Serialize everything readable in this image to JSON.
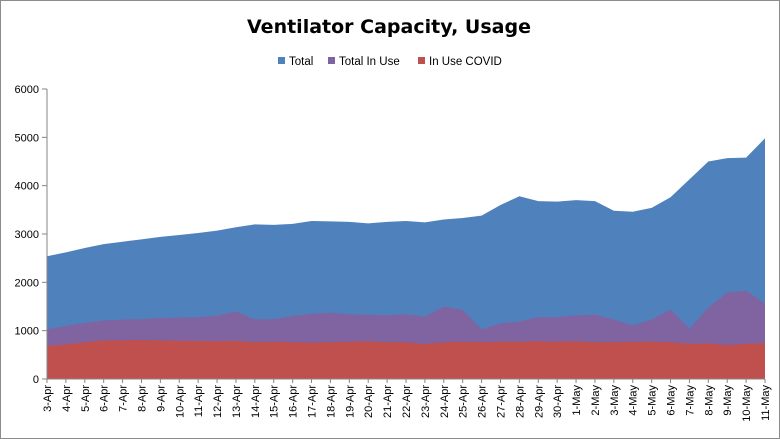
{
  "chart_data": {
    "type": "area",
    "title": "Ventilator Capacity, Usage",
    "xlabel": "",
    "ylabel": "",
    "ylim": [
      0,
      6000
    ],
    "yticks": [
      0,
      1000,
      2000,
      3000,
      4000,
      5000,
      6000
    ],
    "grid": false,
    "legend_position": "top",
    "categories": [
      "3-Apr",
      "4-Apr",
      "5-Apr",
      "6-Apr",
      "7-Apr",
      "8-Apr",
      "9-Apr",
      "10-Apr",
      "11-Apr",
      "12-Apr",
      "13-Apr",
      "14-Apr",
      "15-Apr",
      "16-Apr",
      "17-Apr",
      "18-Apr",
      "19-Apr",
      "20-Apr",
      "21-Apr",
      "22-Apr",
      "23-Apr",
      "24-Apr",
      "25-Apr",
      "26-Apr",
      "27-Apr",
      "28-Apr",
      "29-Apr",
      "30-Apr",
      "1-May",
      "2-May",
      "3-May",
      "4-May",
      "5-May",
      "6-May",
      "7-May",
      "8-May",
      "9-May",
      "10-May",
      "11-May"
    ],
    "series": [
      {
        "name": "Total",
        "color": "#4f81bd",
        "values": [
          2540,
          2620,
          2710,
          2790,
          2840,
          2890,
          2940,
          2980,
          3020,
          3070,
          3140,
          3200,
          3190,
          3210,
          3270,
          3260,
          3250,
          3220,
          3250,
          3270,
          3240,
          3300,
          3330,
          3380,
          3600,
          3780,
          3680,
          3670,
          3700,
          3680,
          3480,
          3460,
          3540,
          3760,
          4130,
          4500,
          4570,
          4580,
          4980
        ]
      },
      {
        "name": "Total In Use",
        "color": "#8064a2",
        "values": [
          1030,
          1100,
          1160,
          1210,
          1230,
          1240,
          1260,
          1270,
          1280,
          1310,
          1400,
          1230,
          1240,
          1300,
          1350,
          1370,
          1340,
          1330,
          1320,
          1340,
          1290,
          1500,
          1430,
          1030,
          1150,
          1190,
          1280,
          1280,
          1320,
          1330,
          1230,
          1110,
          1230,
          1440,
          1040,
          1480,
          1790,
          1830,
          1560
        ]
      },
      {
        "name": "In Use COVID",
        "color": "#c0504d",
        "values": [
          680,
          720,
          760,
          800,
          800,
          810,
          800,
          790,
          790,
          780,
          790,
          760,
          770,
          760,
          750,
          760,
          770,
          780,
          760,
          760,
          720,
          760,
          770,
          760,
          770,
          770,
          780,
          770,
          780,
          760,
          760,
          770,
          770,
          760,
          730,
          740,
          700,
          730,
          740
        ]
      }
    ]
  }
}
